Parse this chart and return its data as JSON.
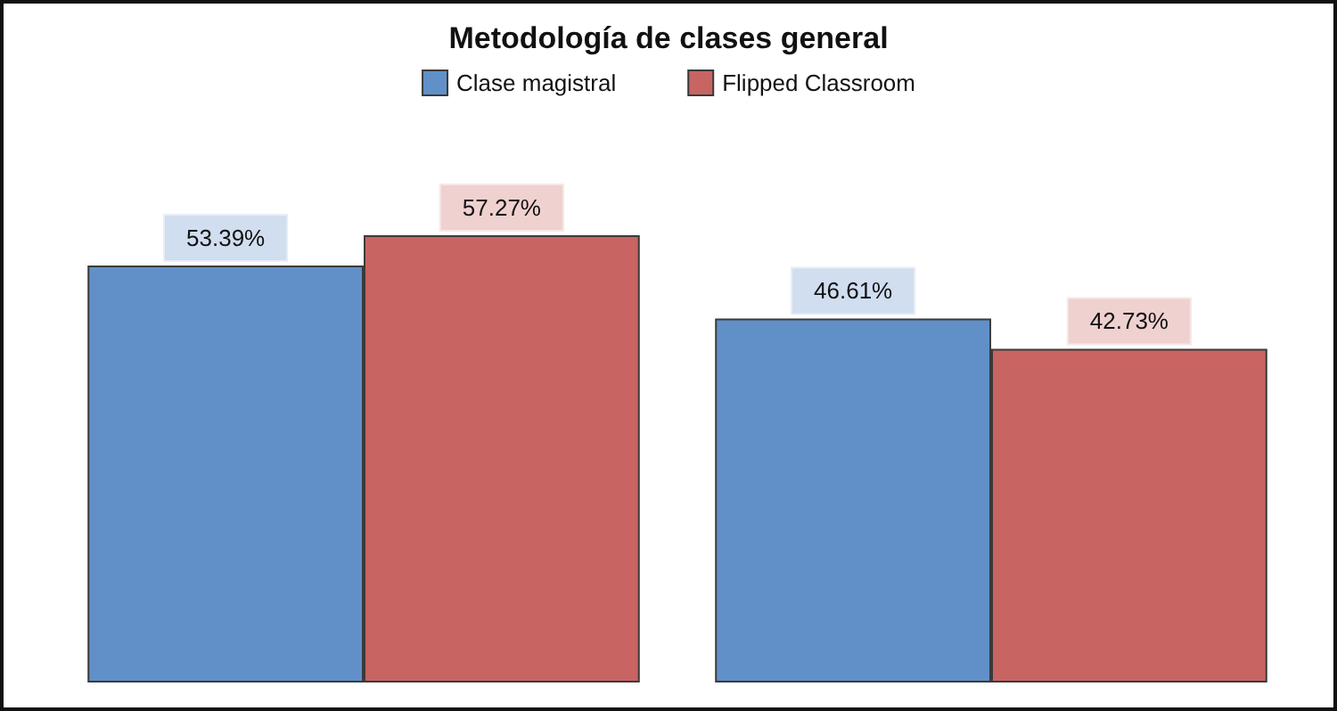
{
  "chart_data": {
    "type": "bar",
    "title": "Metodología de clases general",
    "categories": [
      null,
      null
    ],
    "series": [
      {
        "name": "Clase magistral",
        "color": "#6190c8",
        "values": [
          53.39,
          46.61
        ],
        "value_labels": [
          "53.39%",
          "46.61%"
        ]
      },
      {
        "name": "Flipped Classroom",
        "color": "#c86462",
        "values": [
          57.27,
          42.73
        ],
        "value_labels": [
          "57.27%",
          "42.73%"
        ]
      }
    ],
    "legend": "top"
  }
}
